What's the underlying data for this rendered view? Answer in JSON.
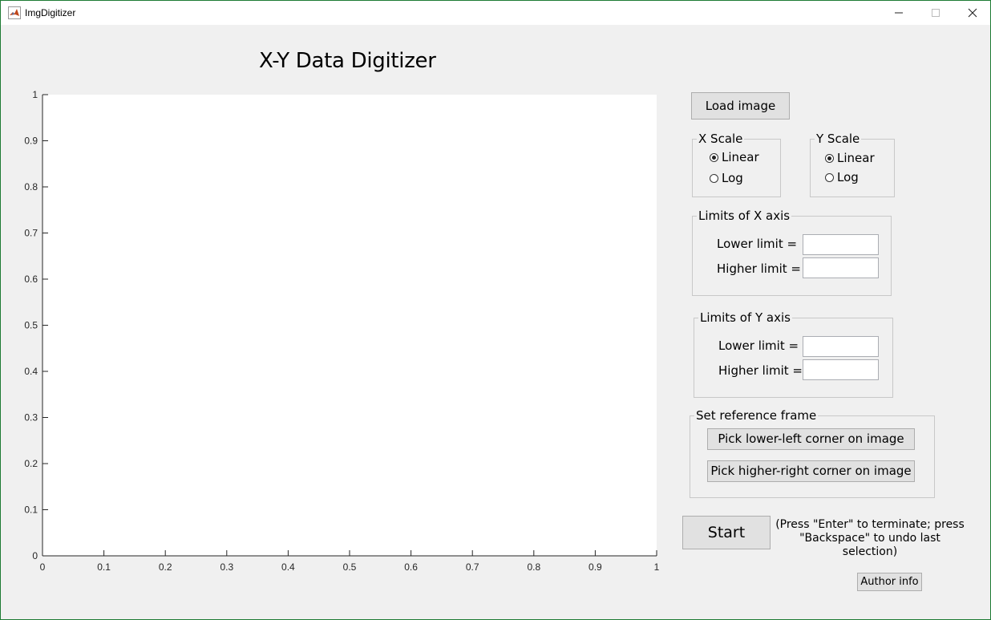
{
  "window": {
    "title": "ImgDigitizer"
  },
  "figure": {
    "title": "X-Y Data Digitizer"
  },
  "chart_data": {
    "type": "scatter",
    "x": [],
    "y": [],
    "xlim": [
      0,
      1
    ],
    "ylim": [
      0,
      1
    ],
    "xticks": [
      "0",
      "0.1",
      "0.2",
      "0.3",
      "0.4",
      "0.5",
      "0.6",
      "0.7",
      "0.8",
      "0.9",
      "1"
    ],
    "yticks": [
      "0",
      "0.1",
      "0.2",
      "0.3",
      "0.4",
      "0.5",
      "0.6",
      "0.7",
      "0.8",
      "0.9",
      "1"
    ],
    "grid": false
  },
  "controls": {
    "load_image": "Load image",
    "x_scale": {
      "title": "X Scale",
      "linear": "Linear",
      "log": "Log",
      "selected": "Linear"
    },
    "y_scale": {
      "title": "Y Scale",
      "linear": "Linear",
      "log": "Log",
      "selected": "Linear"
    },
    "x_limits": {
      "title": "Limits of X axis",
      "lower_label": "Lower limit =",
      "higher_label": "Higher limit =",
      "lower_value": "",
      "higher_value": ""
    },
    "y_limits": {
      "title": "Limits of Y axis",
      "lower_label": "Lower limit =",
      "higher_label": "Higher limit =",
      "lower_value": "",
      "higher_value": ""
    },
    "reference": {
      "title": "Set reference frame",
      "lower_left": "Pick lower-left corner on image",
      "higher_right": "Pick higher-right corner on image"
    },
    "start": "Start",
    "hint_line1": "(Press \"Enter\" to terminate; press",
    "hint_line2": "\"Backspace\" to undo last selection)",
    "author": "Author info"
  }
}
